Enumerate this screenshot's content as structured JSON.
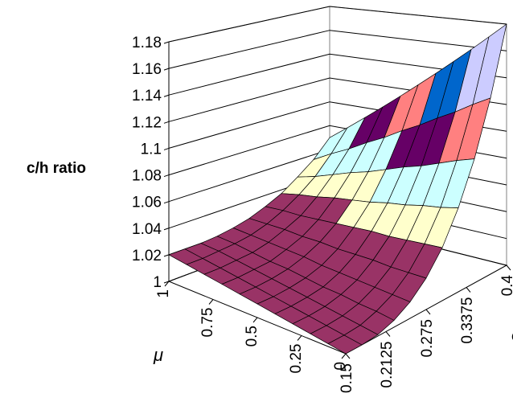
{
  "chart_data": {
    "type": "surface",
    "z_label": "c/h ratio",
    "x_label": "μ",
    "y_label": "σ",
    "zlim": [
      1,
      1.18
    ],
    "zticks": [
      1,
      1.02,
      1.04,
      1.06,
      1.08,
      1.1,
      1.12,
      1.14,
      1.16,
      1.18
    ],
    "xlim": [
      0,
      1
    ],
    "xticks": [
      1,
      0.75,
      0.5,
      0.25,
      0
    ],
    "ylim": [
      0.15,
      0.4
    ],
    "yticks": [
      0.15,
      0.2125,
      0.275,
      0.3375,
      0.4
    ],
    "x": [
      0,
      0.1,
      0.2,
      0.3,
      0.4,
      0.5,
      0.6,
      0.7,
      0.8,
      0.9,
      1
    ],
    "y": [
      0.15,
      0.175,
      0.2,
      0.225,
      0.25,
      0.275,
      0.3,
      0.325,
      0.35,
      0.375,
      0.4
    ],
    "z": [
      [
        1,
        1,
        1.001,
        1.005,
        1.012,
        1.023,
        1.039,
        1.062,
        1.092,
        1.131,
        1.18
      ],
      [
        1.002,
        1.002,
        1.003,
        1.007,
        1.013,
        1.023,
        1.038,
        1.059,
        1.088,
        1.124,
        1.169
      ],
      [
        1.004,
        1.004,
        1.005,
        1.008,
        1.014,
        1.023,
        1.037,
        1.057,
        1.083,
        1.116,
        1.158
      ],
      [
        1.006,
        1.006,
        1.007,
        1.01,
        1.015,
        1.024,
        1.036,
        1.054,
        1.078,
        1.109,
        1.147
      ],
      [
        1.008,
        1.008,
        1.009,
        1.011,
        1.016,
        1.024,
        1.036,
        1.052,
        1.074,
        1.101,
        1.136
      ],
      [
        1.01,
        1.01,
        1.011,
        1.013,
        1.017,
        1.024,
        1.035,
        1.049,
        1.069,
        1.094,
        1.125
      ],
      [
        1.012,
        1.012,
        1.013,
        1.015,
        1.019,
        1.025,
        1.034,
        1.047,
        1.064,
        1.086,
        1.114
      ],
      [
        1.014,
        1.014,
        1.015,
        1.016,
        1.02,
        1.025,
        1.033,
        1.045,
        1.06,
        1.079,
        1.103
      ],
      [
        1.016,
        1.016,
        1.017,
        1.018,
        1.021,
        1.026,
        1.032,
        1.042,
        1.055,
        1.071,
        1.092
      ],
      [
        1.018,
        1.018,
        1.019,
        1.02,
        1.022,
        1.026,
        1.032,
        1.04,
        1.05,
        1.064,
        1.081
      ],
      [
        1.02,
        1.02,
        1.02,
        1.021,
        1.023,
        1.026,
        1.031,
        1.037,
        1.046,
        1.056,
        1.07
      ]
    ],
    "band_colors": [
      "#993366",
      "#993366",
      "#FFFFCC",
      "#CCFFFF",
      "#660066",
      "#FF8080",
      "#0066CC",
      "#CCCCFF",
      "#000080"
    ]
  }
}
